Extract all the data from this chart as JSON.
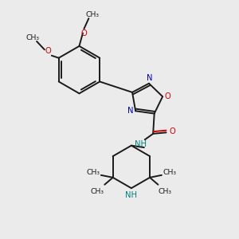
{
  "bg_color": "#ebebeb",
  "atom_color_N": "#0000cc",
  "atom_color_O": "#cc0000",
  "atom_color_NH": "#008080",
  "atom_color_NH2": "#0000cc",
  "bond_color": "#1a1a1a",
  "lw": 1.4,
  "fs": 7.2,
  "xlim": [
    0,
    10
  ],
  "ylim": [
    0,
    10
  ]
}
